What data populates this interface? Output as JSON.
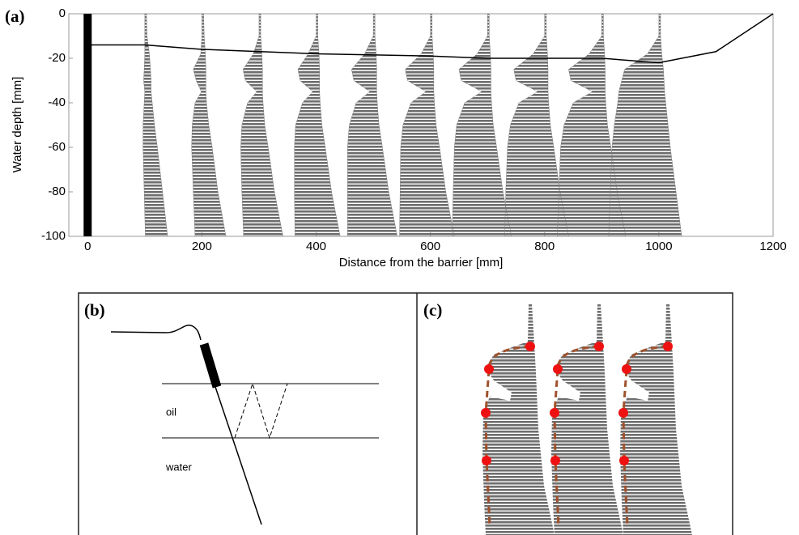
{
  "chart_data": {
    "type": "line",
    "label": "(a)",
    "x_label": "Distance from the barrier [mm]",
    "y_label": "Water depth [mm]",
    "xlim": [
      -33,
      1200
    ],
    "ylim": [
      -100,
      0
    ],
    "xticks": [
      0,
      200,
      400,
      600,
      800,
      1000,
      1200
    ],
    "yticks": [
      0,
      -20,
      -40,
      -60,
      -80,
      -100
    ],
    "x": [
      0,
      100,
      200,
      400,
      600,
      700,
      900,
      1000,
      1100,
      1200
    ],
    "values": [
      -14,
      -14,
      -16,
      -18,
      -19,
      -20,
      -20,
      -22,
      -17,
      0
    ],
    "color": "#000000",
    "barrier": {
      "x": 0,
      "color": "#000000"
    },
    "profile_color": "#808080",
    "depths": [
      0,
      -10,
      -18,
      -25,
      -30,
      -35,
      -40,
      -50,
      -60,
      -80,
      -100
    ],
    "profiles": [
      {
        "left": [
          100,
          100,
          100,
          99,
          98,
          100,
          99,
          97,
          97,
          99,
          101
        ],
        "right": [
          103,
          104,
          108,
          110,
          111,
          111,
          113,
          117,
          122,
          131,
          140
        ]
      },
      {
        "left": [
          200,
          200,
          198,
          185,
          190,
          199,
          188,
          183,
          182,
          185,
          188
        ],
        "right": [
          203,
          204,
          206,
          207,
          207,
          207,
          208,
          212,
          218,
          228,
          242
        ]
      },
      {
        "left": [
          300,
          300,
          290,
          272,
          276,
          296,
          280,
          270,
          268,
          270,
          273
        ],
        "right": [
          303,
          303,
          305,
          306,
          306,
          306,
          307,
          310,
          316,
          327,
          342
        ]
      },
      {
        "left": [
          400,
          400,
          386,
          368,
          372,
          394,
          376,
          364,
          362,
          362,
          363
        ],
        "right": [
          403,
          403,
          405,
          406,
          406,
          406,
          407,
          410,
          416,
          427,
          442
        ]
      },
      {
        "left": [
          500,
          500,
          485,
          462,
          466,
          494,
          470,
          458,
          455,
          455,
          455
        ],
        "right": [
          503,
          503,
          505,
          506,
          506,
          506,
          507,
          510,
          516,
          527,
          542
        ]
      },
      {
        "left": [
          600,
          600,
          584,
          556,
          560,
          592,
          566,
          552,
          548,
          547,
          546
        ],
        "right": [
          603,
          603,
          605,
          606,
          606,
          606,
          607,
          610,
          616,
          627,
          642
        ]
      },
      {
        "left": [
          700,
          700,
          682,
          650,
          654,
          690,
          660,
          646,
          642,
          640,
          638
        ],
        "right": [
          703,
          703,
          705,
          706,
          706,
          706,
          707,
          710,
          716,
          727,
          742
        ]
      },
      {
        "left": [
          800,
          800,
          780,
          746,
          750,
          788,
          755,
          740,
          735,
          732,
          730
        ],
        "right": [
          803,
          803,
          805,
          806,
          806,
          806,
          807,
          810,
          816,
          827,
          842
        ]
      },
      {
        "left": [
          900,
          900,
          878,
          842,
          846,
          884,
          850,
          834,
          828,
          825,
          822
        ],
        "right": [
          903,
          903,
          905,
          906,
          906,
          906,
          907,
          910,
          916,
          927,
          942
        ]
      },
      {
        "left": [
          1000,
          1000,
          980,
          940,
          935,
          930,
          928,
          922,
          918,
          915,
          912
        ],
        "right": [
          1003,
          1003,
          1005,
          1008,
          1009,
          1010,
          1012,
          1016,
          1020,
          1030,
          1040
        ]
      }
    ]
  },
  "panel_b": {
    "label": "(b)",
    "oil": "oil",
    "water": "water"
  },
  "panel_c": {
    "label": "(c)"
  }
}
